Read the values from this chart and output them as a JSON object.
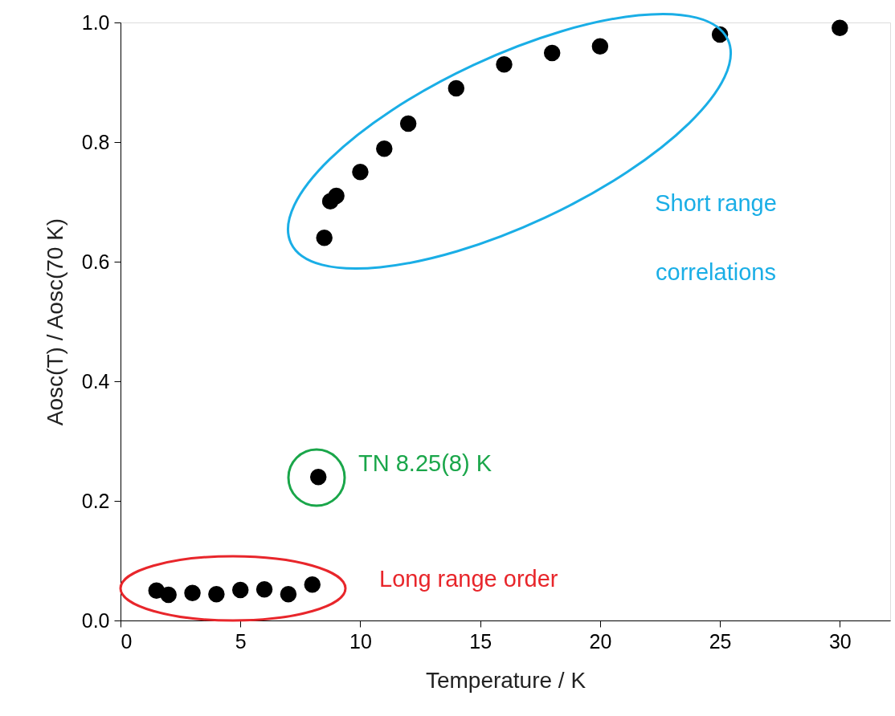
{
  "chart_data": {
    "type": "scatter",
    "xlabel": "Temperature / K",
    "ylabel": "Aosc(T) / Aosc(70 K)",
    "x": [
      1.5,
      2,
      3,
      4,
      5,
      6,
      7,
      8,
      8.25,
      8.5,
      8.75,
      9,
      10,
      11,
      12,
      14,
      16,
      18,
      20,
      25,
      30
    ],
    "series": [
      {
        "color": "#000000",
        "values": [
          0.05,
          0.043,
          0.046,
          0.044,
          0.051,
          0.052,
          0.044,
          0.06,
          0.24,
          0.64,
          0.701,
          0.71,
          0.75,
          0.789,
          0.831,
          0.89,
          0.93,
          0.949,
          0.96,
          0.98,
          0.991
        ]
      }
    ],
    "xlim": [
      0,
      32.1
    ],
    "ylim": [
      0,
      1.0
    ],
    "xticks": [
      0,
      5,
      10,
      15,
      20,
      25,
      30
    ],
    "yticks": [
      {
        "value": 0,
        "label": "0.0"
      },
      0.2,
      0.4,
      0.6,
      0.8,
      {
        "value": 1,
        "label": "1.0"
      }
    ],
    "marker": "circle",
    "grid": false,
    "annotations": [
      "Short range",
      "correlations",
      "TN 8.25(8) K",
      "Long range order"
    ]
  }
}
